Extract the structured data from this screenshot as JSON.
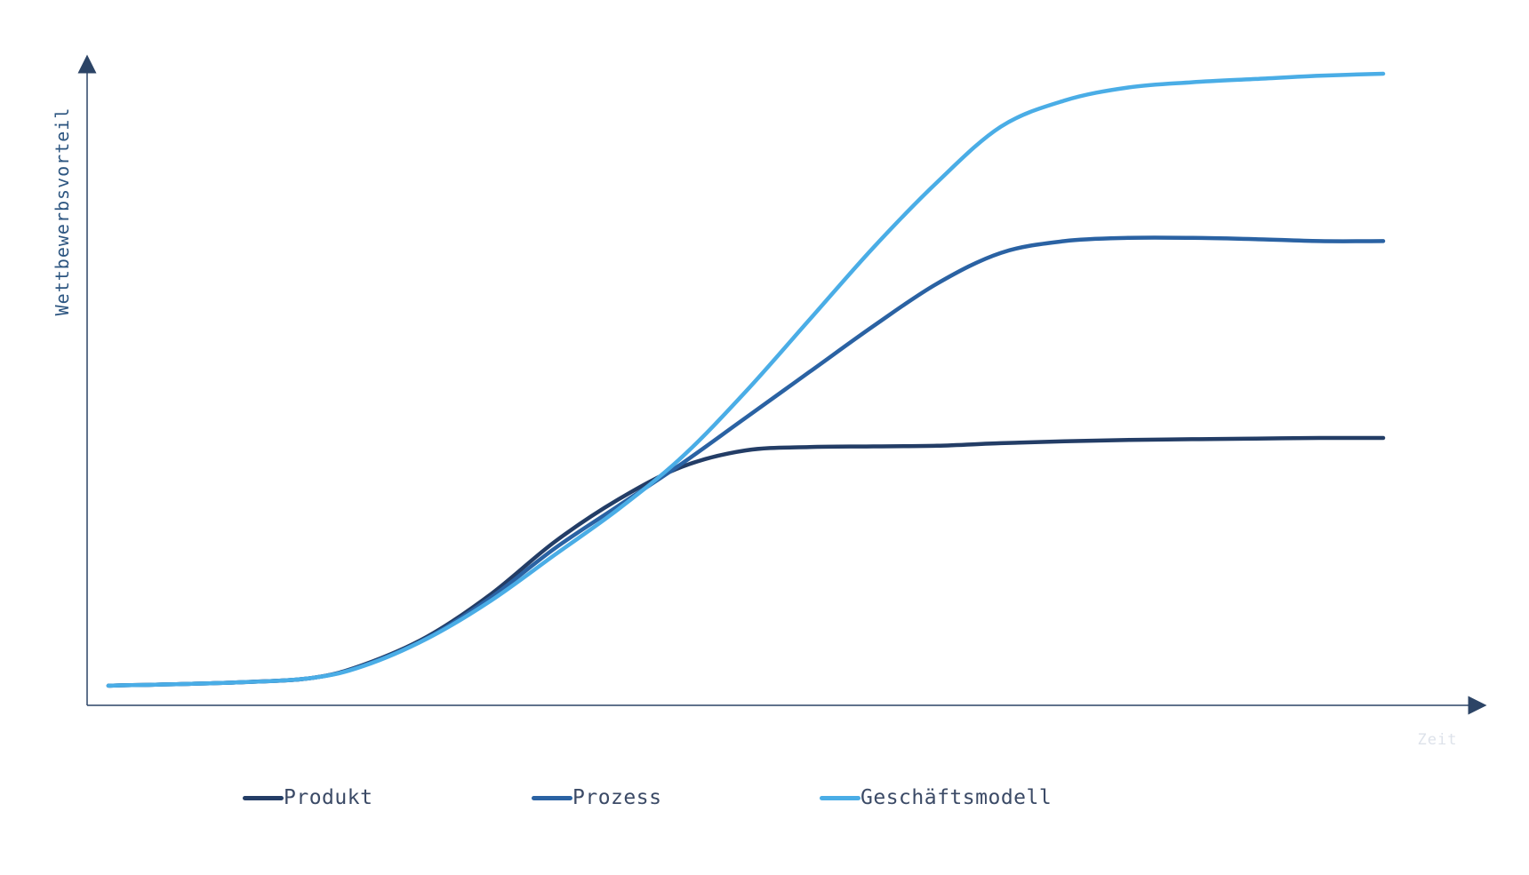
{
  "chart_data": {
    "type": "line",
    "title": "",
    "xlabel": "Zeit",
    "ylabel": "Wettbewerbsvorteil",
    "xlim": [
      0,
      100
    ],
    "ylim": [
      0,
      100
    ],
    "x": [
      0,
      10,
      16,
      20,
      25,
      30,
      35,
      40,
      45,
      50,
      55,
      60,
      65,
      70,
      75,
      80,
      85,
      90,
      95,
      100
    ],
    "series": [
      {
        "name": "Produkt",
        "color": "#233d66",
        "values": [
          3.0,
          3.5,
          4.2,
          6.2,
          10.5,
          17.0,
          25.0,
          31.5,
          36.5,
          39.0,
          39.5,
          39.6,
          39.7,
          40.1,
          40.4,
          40.6,
          40.7,
          40.8,
          40.9,
          40.9
        ]
      },
      {
        "name": "Prozess",
        "color": "#2a62a3",
        "values": [
          3.0,
          3.5,
          4.2,
          6.1,
          10.3,
          16.5,
          24.0,
          30.5,
          37.0,
          44.0,
          51.0,
          58.0,
          64.5,
          69.2,
          71.0,
          71.5,
          71.5,
          71.3,
          71.0,
          71.0
        ]
      },
      {
        "name": "Geschäftsmodell",
        "color": "#4aade6",
        "values": [
          3.0,
          3.5,
          4.2,
          6.0,
          10.2,
          16.0,
          23.0,
          30.0,
          38.0,
          48.0,
          59.0,
          70.0,
          80.0,
          88.5,
          92.5,
          94.5,
          95.3,
          95.8,
          96.3,
          96.6
        ]
      }
    ],
    "axis_color": "#2c4466",
    "ylabel_color": "#2c5580",
    "xlabel_color": "#dde2ea",
    "grid": false,
    "legend_position": "bottom"
  }
}
